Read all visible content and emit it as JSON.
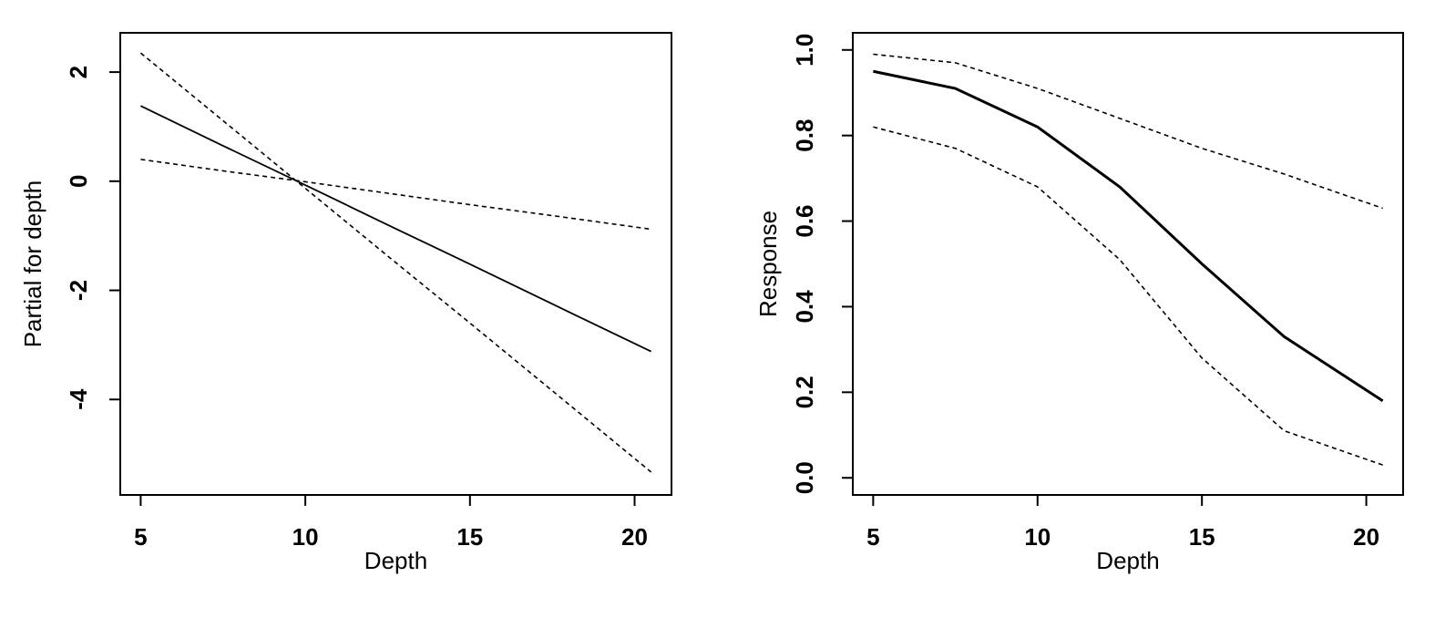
{
  "chart_data": [
    {
      "type": "line",
      "x_label": "Depth",
      "y_label": "Partial for depth",
      "x": [
        5,
        7.5,
        10,
        12.5,
        15,
        17.5,
        20.5
      ],
      "series": [
        {
          "color": "#000000",
          "dashed": false,
          "values": [
            1.38,
            0.65,
            -0.07,
            -0.8,
            -1.52,
            -2.25,
            -3.12
          ]
        },
        {
          "color": "#000000",
          "dashed": true,
          "values": [
            2.35,
            1.11,
            -0.13,
            -1.37,
            -2.6,
            -3.84,
            -5.33
          ]
        },
        {
          "color": "#000000",
          "dashed": true,
          "values": [
            0.4,
            0.19,
            -0.01,
            -0.22,
            -0.43,
            -0.63,
            -0.88
          ]
        }
      ],
      "xlim": [
        4.38,
        21.12
      ],
      "xticks": [
        5,
        10,
        15,
        20
      ],
      "ylim": [
        -5.75,
        2.72
      ],
      "yticks": [
        -4,
        -2,
        0,
        2
      ]
    },
    {
      "type": "line",
      "x_label": "Depth",
      "y_label": "Response",
      "x": [
        5,
        7.5,
        10,
        12.5,
        15,
        17.5,
        20.5
      ],
      "series": [
        {
          "color": "#000000",
          "dashed": false,
          "values": [
            0.95,
            0.91,
            0.82,
            0.68,
            0.5,
            0.33,
            0.18
          ]
        },
        {
          "color": "#000000",
          "dashed": true,
          "values": [
            0.99,
            0.97,
            0.91,
            0.84,
            0.77,
            0.71,
            0.63
          ]
        },
        {
          "color": "#000000",
          "dashed": true,
          "values": [
            0.82,
            0.77,
            0.68,
            0.51,
            0.28,
            0.11,
            0.03
          ]
        }
      ],
      "xlim": [
        4.38,
        21.12
      ],
      "xticks": [
        5,
        10,
        15,
        20
      ],
      "ylim": [
        -0.04,
        1.04
      ],
      "yticks": [
        {
          "value": 0,
          "label": "0.0"
        },
        0.2,
        0.4,
        0.6,
        0.8,
        {
          "value": 1,
          "label": "1.0"
        }
      ]
    }
  ]
}
